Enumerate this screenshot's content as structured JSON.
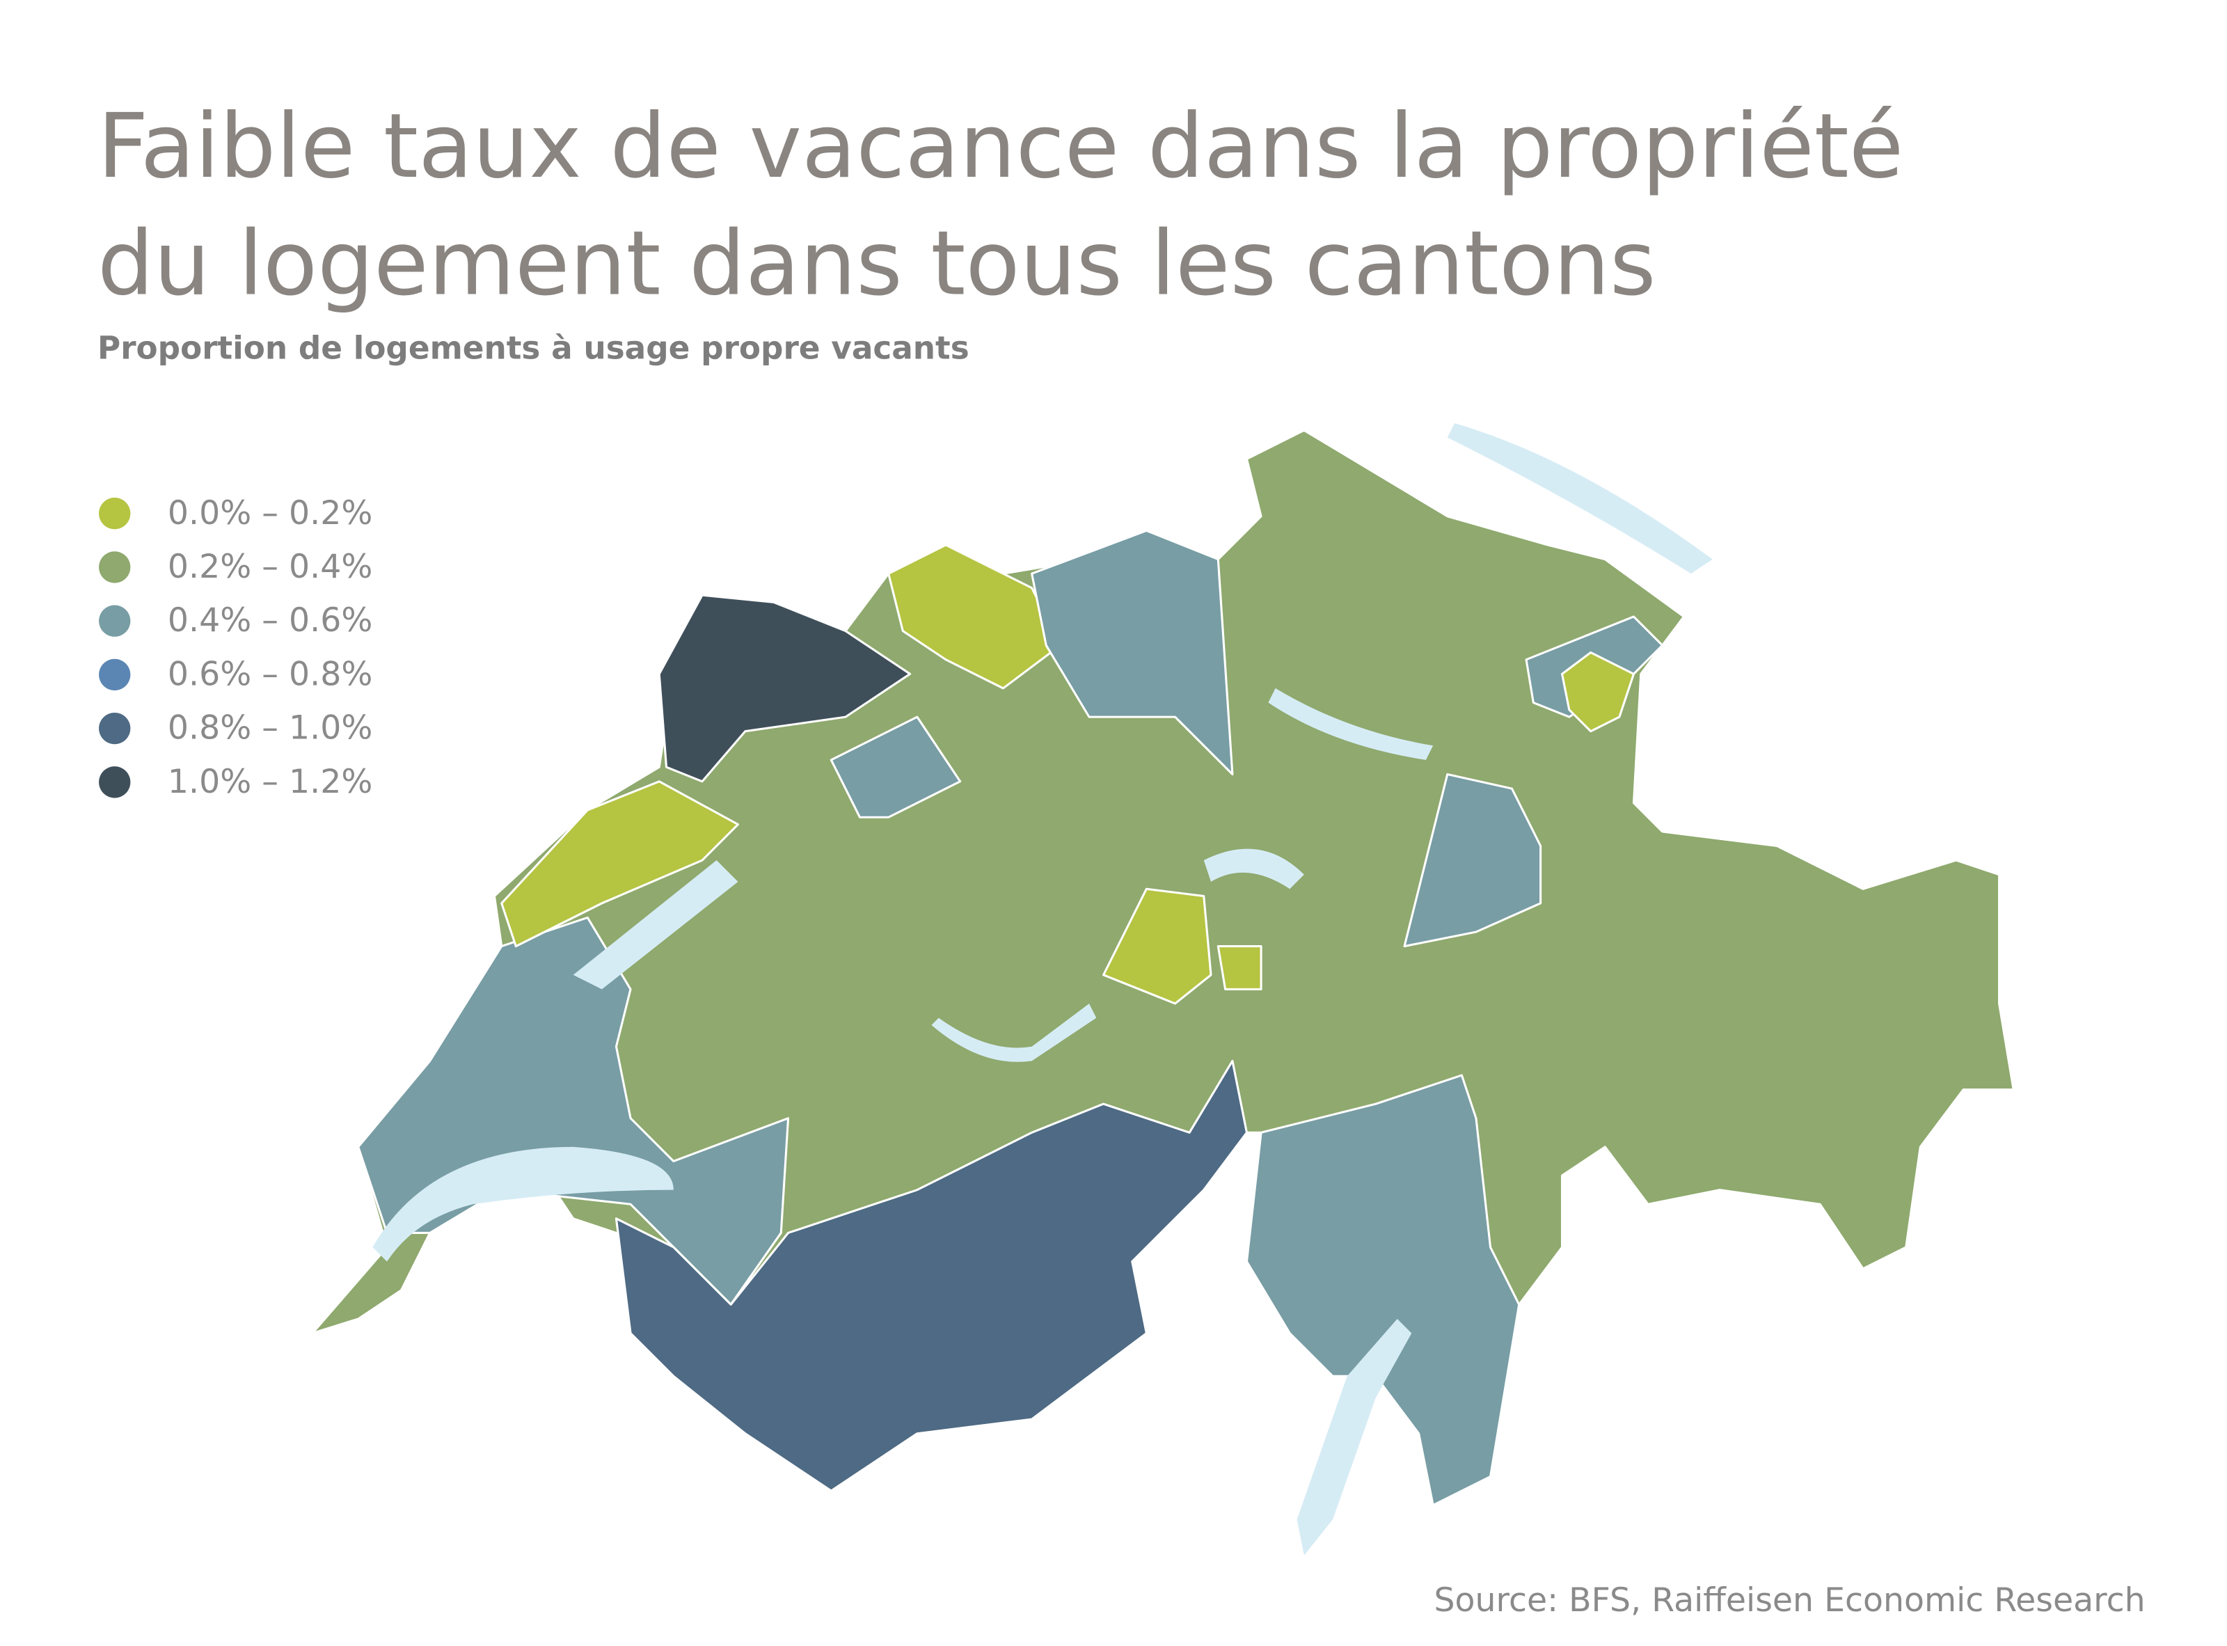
{
  "header": {
    "title_lines": [
      "Faible taux de vacance dans la propriété",
      "du logement dans tous les cantons"
    ],
    "subtitle": "Proportion de logements à usage propre vacants"
  },
  "legend": {
    "items": [
      {
        "label": "0.0% – 0.2%",
        "color": "#b5c441"
      },
      {
        "label": "0.2% – 0.4%",
        "color": "#8fa96e"
      },
      {
        "label": "0.4% – 0.6%",
        "color": "#789da4"
      },
      {
        "label": "0.6% – 0.8%",
        "color": "#5b86b4"
      },
      {
        "label": "0.8% – 1.0%",
        "color": "#4e6a84"
      },
      {
        "label": "1.0% – 1.2%",
        "color": "#3f4f5a"
      }
    ]
  },
  "source": "Source: BFS, Raiffeisen Economic Research"
}
